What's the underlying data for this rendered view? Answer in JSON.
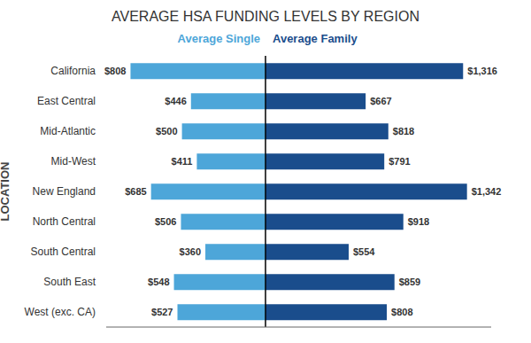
{
  "chart_data": [
    {
      "type": "bar",
      "orientation": "horizontal",
      "title": "AVERAGE HSA FUNDING LEVELS BY REGION",
      "ylabel": "LOCATION",
      "categories": [
        "California",
        "East Central",
        "Mid-Atlantic",
        "Mid-West",
        "New England",
        "North Central",
        "South Central",
        "South East",
        "West (exc. CA)"
      ],
      "series": [
        {
          "name": "Average Single",
          "color": "#4da6d9",
          "values": [
            808,
            446,
            500,
            411,
            685,
            506,
            360,
            548,
            527
          ],
          "value_labels": [
            "$808",
            "$446",
            "$500",
            "$411",
            "$685",
            "$506",
            "$360",
            "$548",
            "$527"
          ]
        }
      ],
      "xlim": [
        953.44,
        0
      ],
      "data_labels": true,
      "tick_labels": "y",
      "grid": false
    },
    {
      "type": "bar",
      "orientation": "horizontal",
      "categories": [
        "California",
        "East Central",
        "Mid-Atlantic",
        "Mid-West",
        "New England",
        "North Central",
        "South Central",
        "South East",
        "West (exc. CA)"
      ],
      "series": [
        {
          "name": "Average Family",
          "color": "#1a4d8c",
          "values": [
            1316,
            667,
            818,
            791,
            1342,
            918,
            554,
            859,
            808
          ],
          "value_labels": [
            "$1,316",
            "$667",
            "$818",
            "$791",
            "$1,342",
            "$918",
            "$554",
            "$859",
            "$808"
          ]
        }
      ],
      "xlim": [
        0,
        1503.04
      ],
      "data_labels": true,
      "tick_labels": false,
      "grid": false
    }
  ]
}
